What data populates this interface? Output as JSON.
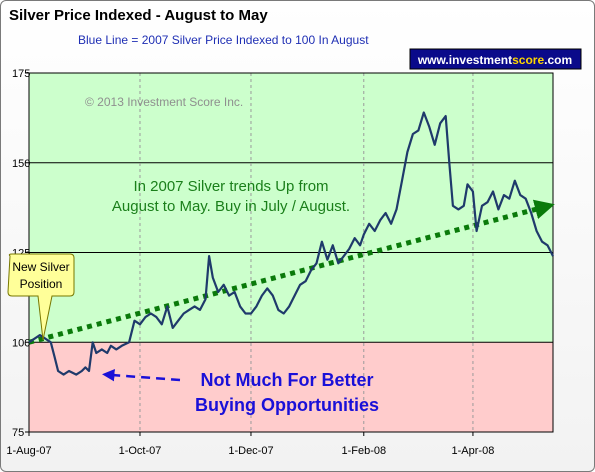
{
  "chart_data": {
    "type": "line",
    "title": "Silver Price Indexed - August to May",
    "subtitle": "Blue Line =  2007 Silver Price Indexed to 100 In August",
    "watermark": "© 2013 Investment Score Inc.",
    "brand": {
      "prefix": "www.",
      "name": "investment",
      "highlight": "score",
      "suffix": ".com"
    },
    "ylim": [
      75,
      175
    ],
    "yticks": [
      "75",
      "100",
      "125",
      "150",
      "175"
    ],
    "xlim": [
      "2007-08-01",
      "2008-05-15"
    ],
    "xticks": [
      {
        "date": "2007-08-01",
        "label": "1-Aug-07"
      },
      {
        "date": "2007-10-01",
        "label": "1-Oct-07"
      },
      {
        "date": "2007-12-01",
        "label": "1-Dec-07"
      },
      {
        "date": "2008-02-01",
        "label": "1-Feb-08"
      },
      {
        "date": "2008-04-01",
        "label": "1-Apr-08"
      }
    ],
    "zones": [
      {
        "from": 100,
        "to": 175,
        "color": "#ccffcc"
      },
      {
        "from": 75,
        "to": 100,
        "color": "#ffcccc"
      }
    ],
    "series": [
      {
        "color": "#1f3a6b",
        "points": [
          [
            "2007-08-01",
            100
          ],
          [
            "2007-08-04",
            101
          ],
          [
            "2007-08-07",
            102
          ],
          [
            "2007-08-10",
            101
          ],
          [
            "2007-08-13",
            100
          ],
          [
            "2007-08-15",
            96
          ],
          [
            "2007-08-17",
            92
          ],
          [
            "2007-08-20",
            91
          ],
          [
            "2007-08-23",
            92
          ],
          [
            "2007-08-27",
            91
          ],
          [
            "2007-08-30",
            92
          ],
          [
            "2007-09-01",
            93
          ],
          [
            "2007-09-03",
            92
          ],
          [
            "2007-09-05",
            100
          ],
          [
            "2007-09-07",
            97
          ],
          [
            "2007-09-10",
            98
          ],
          [
            "2007-09-13",
            97
          ],
          [
            "2007-09-15",
            99
          ],
          [
            "2007-09-18",
            98
          ],
          [
            "2007-09-21",
            99
          ],
          [
            "2007-09-25",
            100
          ],
          [
            "2007-09-28",
            106
          ],
          [
            "2007-10-01",
            105
          ],
          [
            "2007-10-04",
            107
          ],
          [
            "2007-10-07",
            108
          ],
          [
            "2007-10-10",
            107
          ],
          [
            "2007-10-13",
            105
          ],
          [
            "2007-10-16",
            110
          ],
          [
            "2007-10-19",
            104
          ],
          [
            "2007-10-22",
            106
          ],
          [
            "2007-10-25",
            108
          ],
          [
            "2007-10-28",
            109
          ],
          [
            "2007-10-31",
            110
          ],
          [
            "2007-11-03",
            109
          ],
          [
            "2007-11-06",
            112
          ],
          [
            "2007-11-08",
            124
          ],
          [
            "2007-11-10",
            118
          ],
          [
            "2007-11-13",
            114
          ],
          [
            "2007-11-16",
            116
          ],
          [
            "2007-11-19",
            113
          ],
          [
            "2007-11-22",
            114
          ],
          [
            "2007-11-25",
            110
          ],
          [
            "2007-11-28",
            108
          ],
          [
            "2007-12-01",
            108
          ],
          [
            "2007-12-04",
            110
          ],
          [
            "2007-12-07",
            113
          ],
          [
            "2007-12-10",
            115
          ],
          [
            "2007-12-13",
            113
          ],
          [
            "2007-12-16",
            109
          ],
          [
            "2007-12-19",
            108
          ],
          [
            "2007-12-22",
            110
          ],
          [
            "2007-12-25",
            113
          ],
          [
            "2007-12-28",
            116
          ],
          [
            "2007-12-31",
            117
          ],
          [
            "2008-01-03",
            120
          ],
          [
            "2008-01-06",
            122
          ],
          [
            "2008-01-09",
            128
          ],
          [
            "2008-01-12",
            123
          ],
          [
            "2008-01-15",
            127
          ],
          [
            "2008-01-18",
            122
          ],
          [
            "2008-01-21",
            124
          ],
          [
            "2008-01-24",
            126
          ],
          [
            "2008-01-27",
            129
          ],
          [
            "2008-01-30",
            127
          ],
          [
            "2008-02-01",
            130
          ],
          [
            "2008-02-04",
            133
          ],
          [
            "2008-02-07",
            131
          ],
          [
            "2008-02-10",
            134
          ],
          [
            "2008-02-13",
            136
          ],
          [
            "2008-02-16",
            133
          ],
          [
            "2008-02-19",
            137
          ],
          [
            "2008-02-22",
            145
          ],
          [
            "2008-02-25",
            153
          ],
          [
            "2008-02-28",
            158
          ],
          [
            "2008-03-02",
            159
          ],
          [
            "2008-03-05",
            164
          ],
          [
            "2008-03-08",
            160
          ],
          [
            "2008-03-11",
            155
          ],
          [
            "2008-03-14",
            161
          ],
          [
            "2008-03-17",
            163
          ],
          [
            "2008-03-19",
            150
          ],
          [
            "2008-03-21",
            138
          ],
          [
            "2008-03-24",
            137
          ],
          [
            "2008-03-27",
            138
          ],
          [
            "2008-03-29",
            144
          ],
          [
            "2008-04-01",
            142
          ],
          [
            "2008-04-03",
            131
          ],
          [
            "2008-04-06",
            138
          ],
          [
            "2008-04-09",
            139
          ],
          [
            "2008-04-12",
            142
          ],
          [
            "2008-04-15",
            137
          ],
          [
            "2008-04-18",
            141
          ],
          [
            "2008-04-21",
            140
          ],
          [
            "2008-04-24",
            145
          ],
          [
            "2008-04-27",
            141
          ],
          [
            "2008-04-30",
            140
          ],
          [
            "2008-05-03",
            136
          ],
          [
            "2008-05-06",
            131
          ],
          [
            "2008-05-09",
            128
          ],
          [
            "2008-05-12",
            127
          ],
          [
            "2008-05-15",
            124
          ]
        ]
      }
    ],
    "trendline": {
      "color": "#0a7a0a",
      "from": [
        "2007-08-01",
        100
      ],
      "to": [
        "2008-05-15",
        138
      ]
    },
    "annotations": [
      {
        "kind": "text",
        "lines": [
          "In 2007 Silver trends Up from",
          "August to May.  Buy in July / August."
        ],
        "color": "#1a7f1a"
      },
      {
        "kind": "callout",
        "lines": [
          "New Silver",
          "Position"
        ]
      },
      {
        "kind": "text",
        "lines": [
          "Not Much For Better",
          "Buying Opportunities"
        ],
        "color": "#1a10d8"
      }
    ]
  }
}
